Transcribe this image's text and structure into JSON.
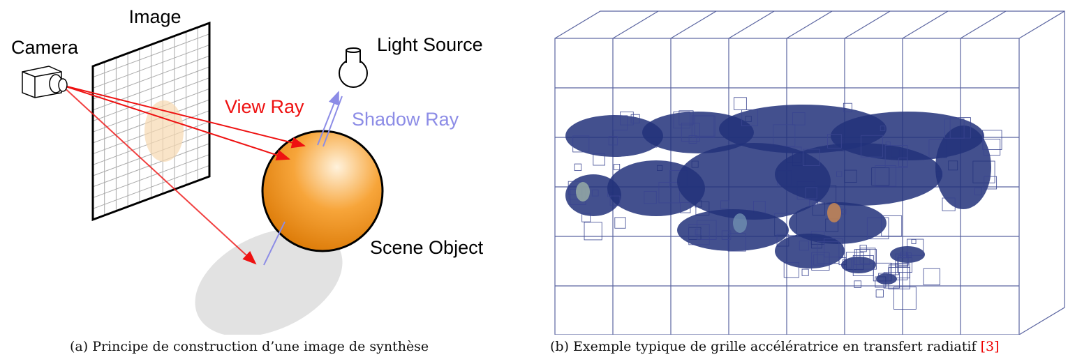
{
  "figure_a": {
    "labels": {
      "image": "Image",
      "camera": "Camera",
      "light_source": "Light Source",
      "view_ray": "View Ray",
      "shadow_ray": "Shadow Ray",
      "scene_object": "Scene Object"
    },
    "caption": "(a) Principe de construction d’une image de synthèse"
  },
  "figure_b": {
    "caption": "(b) Exemple typique de grille accélératrice en transfert radiatif",
    "citation": "[3]"
  }
}
